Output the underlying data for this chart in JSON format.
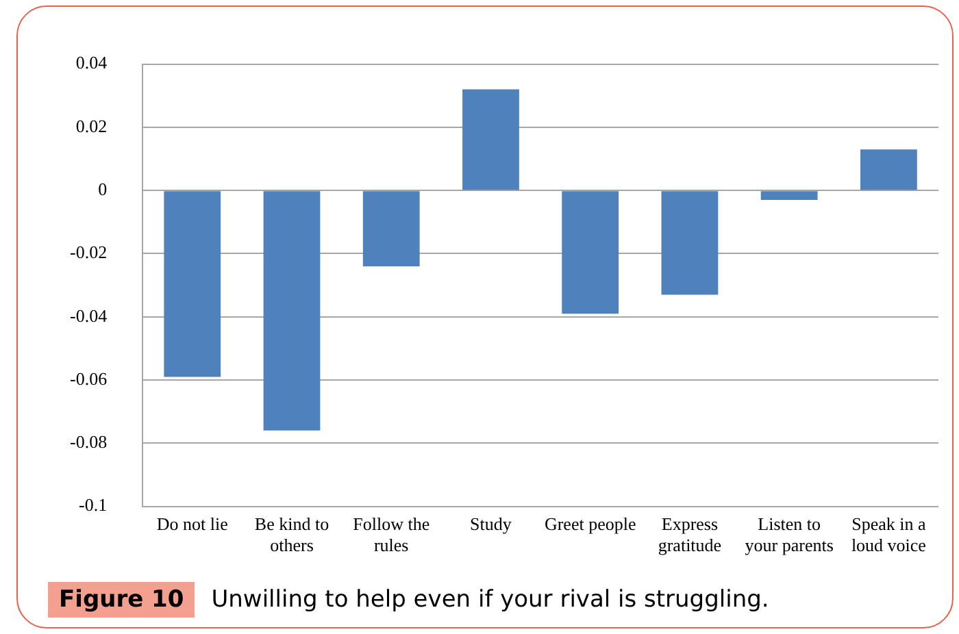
{
  "chart_data": {
    "type": "bar",
    "categories": [
      "Do not lie",
      "Be kind to others",
      "Follow the rules",
      "Study",
      "Greet people",
      "Express gratitude",
      "Listen to your parents",
      "Speak in a loud voice"
    ],
    "values": [
      -0.059,
      -0.076,
      -0.024,
      0.032,
      -0.039,
      -0.033,
      -0.003,
      0.013
    ],
    "color": "#4f81bd",
    "ylim": [
      -0.1,
      0.04
    ],
    "yticks": [
      -0.1,
      -0.08,
      -0.06,
      -0.04,
      -0.02,
      0,
      0.02,
      0.04
    ],
    "grid": "y",
    "legend": false,
    "annotations": [
      "Figure 10",
      "Unwilling to help even if your rival is struggling."
    ]
  }
}
